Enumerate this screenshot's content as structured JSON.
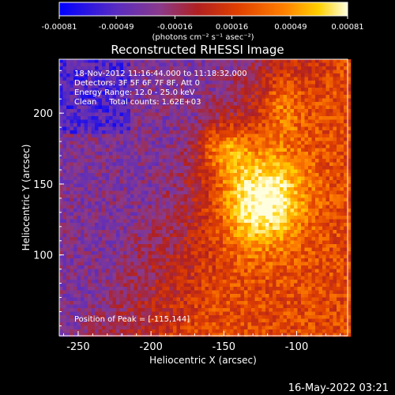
{
  "chart_data": {
    "type": "heatmap",
    "title": "Reconstructed RHESSI Image",
    "colorbar": {
      "ticks": [
        "-0.00081",
        "-0.00049",
        "-0.00016",
        "0.00016",
        "0.00049",
        "0.00081"
      ],
      "range": [
        -0.00081,
        0.00081
      ],
      "colormap": [
        "#0000ff",
        "#5a2cc0",
        "#8a3a8a",
        "#b02020",
        "#e04000",
        "#ff8000",
        "#ffd000",
        "#ffffe0"
      ]
    },
    "units_label": "(photons cm⁻² s⁻¹ asec⁻²)",
    "info": {
      "line1": "18-Nov-2012 11:16:44.000 to 11:18:32.000",
      "line2": "Detectors: 3F 5F 6F 7F 8F, Att 0",
      "line3": "Energy Range: 12.0 - 25.0 keV",
      "line4": "Clean     Total counts: 1.62E+03"
    },
    "peak_text": "Position of Peak = [-115,144]",
    "xlabel": "Heliocentric X (arcsec)",
    "ylabel": "Heliocentric Y (arcsec)",
    "xlim": [
      -263,
      -65
    ],
    "ylim": [
      43,
      238
    ],
    "xticks": [
      -250,
      -200,
      -150,
      -100
    ],
    "xtick_labels": [
      "-250",
      "-200",
      "-150",
      "-100"
    ],
    "yticks": [
      100,
      150,
      200
    ],
    "ytick_labels": [
      "100",
      "150",
      "200"
    ],
    "peak": {
      "x": -115,
      "y": 144
    },
    "timestamp": "16-May-2022 03:21"
  }
}
